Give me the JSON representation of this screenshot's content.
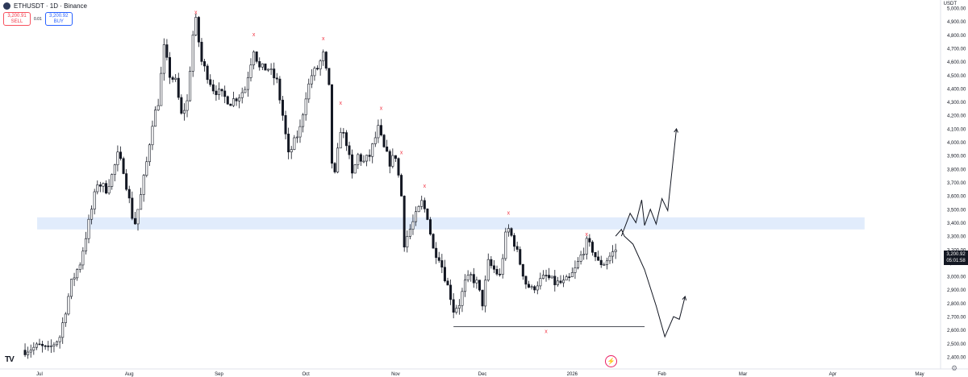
{
  "header": {
    "title": "ETHUSDT · 1D · Binance",
    "sell": {
      "price": "3,200.91",
      "label": "SELL"
    },
    "buy": {
      "price": "3,200.92",
      "label": "BUY"
    },
    "spread": "0.01",
    "currency": "USDT"
  },
  "last_price": {
    "value": "3,200.92",
    "countdown": "05:01:58"
  },
  "icons": {
    "logo": "tradingview-logo-icon",
    "bolt": "lightning-icon",
    "settings": "gear-icon"
  },
  "colors": {
    "up": "#ffffff",
    "down": "#131722",
    "marker": "#f23645",
    "zone": "#dce9fb",
    "projection": "#131722"
  },
  "chart_data": {
    "type": "candlestick",
    "grid": false,
    "ylim": [
      2350,
      5050
    ],
    "y_ticks": [
      2400,
      2500,
      2600,
      2700,
      2800,
      2900,
      3000,
      3100,
      3200,
      3300,
      3400,
      3500,
      3600,
      3700,
      3800,
      3900,
      4000,
      4100,
      4200,
      4300,
      4400,
      4500,
      4600,
      4700,
      4800,
      4900,
      5000
    ],
    "y_tick_labels": [
      "2,400.00",
      "2,500.00",
      "2,600.00",
      "2,700.00",
      "2,800.00",
      "2,900.00",
      "3,000.00",
      "3,100.00",
      "3,200.00",
      "3,300.00",
      "3,400.00",
      "3,500.00",
      "3,600.00",
      "3,700.00",
      "3,800.00",
      "3,900.00",
      "4,000.00",
      "4,100.00",
      "4,200.00",
      "4,300.00",
      "4,400.00",
      "4,500.00",
      "4,600.00",
      "4,700.00",
      "4,800.00",
      "4,900.00",
      "5,000.00"
    ],
    "x_ticks": [
      {
        "label": "Jul",
        "date": "2025-07-01"
      },
      {
        "label": "Aug",
        "date": "2025-08-01"
      },
      {
        "label": "Sep",
        "date": "2025-09-01"
      },
      {
        "label": "Oct",
        "date": "2025-10-01"
      },
      {
        "label": "Nov",
        "date": "2025-11-01"
      },
      {
        "label": "Dec",
        "date": "2025-12-01"
      },
      {
        "label": "2026",
        "date": "2026-01-01"
      },
      {
        "label": "Feb",
        "date": "2026-02-01"
      },
      {
        "label": "Mar",
        "date": "2026-03-01"
      },
      {
        "label": "Apr",
        "date": "2026-04-01"
      },
      {
        "label": "May",
        "date": "2026-05-01"
      }
    ],
    "x_start": "2025-06-26",
    "x_end": "2026-05-11",
    "price_path": [
      [
        "2025-06-26",
        2450
      ],
      [
        "2025-07-01",
        2480
      ],
      [
        "2025-07-04",
        2450
      ],
      [
        "2025-07-08",
        2550
      ],
      [
        "2025-07-10",
        2750
      ],
      [
        "2025-07-12",
        2950
      ],
      [
        "2025-07-15",
        3100
      ],
      [
        "2025-07-17",
        3300
      ],
      [
        "2025-07-19",
        3500
      ],
      [
        "2025-07-21",
        3700
      ],
      [
        "2025-07-24",
        3650
      ],
      [
        "2025-07-26",
        3750
      ],
      [
        "2025-07-28",
        3900
      ],
      [
        "2025-07-30",
        3800
      ],
      [
        "2025-08-02",
        3450
      ],
      [
        "2025-08-03",
        3400
      ],
      [
        "2025-08-05",
        3600
      ],
      [
        "2025-08-07",
        3850
      ],
      [
        "2025-08-09",
        4150
      ],
      [
        "2025-08-11",
        4300
      ],
      [
        "2025-08-13",
        4700
      ],
      [
        "2025-08-15",
        4500
      ],
      [
        "2025-08-17",
        4450
      ],
      [
        "2025-08-19",
        4200
      ],
      [
        "2025-08-21",
        4300
      ],
      [
        "2025-08-23",
        4800
      ],
      [
        "2025-08-24",
        4900
      ],
      [
        "2025-08-26",
        4600
      ],
      [
        "2025-08-28",
        4500
      ],
      [
        "2025-08-30",
        4400
      ],
      [
        "2025-09-02",
        4350
      ],
      [
        "2025-09-05",
        4300
      ],
      [
        "2025-09-08",
        4350
      ],
      [
        "2025-09-10",
        4400
      ],
      [
        "2025-09-12",
        4600
      ],
      [
        "2025-09-13",
        4700
      ],
      [
        "2025-09-15",
        4550
      ],
      [
        "2025-09-18",
        4550
      ],
      [
        "2025-09-21",
        4450
      ],
      [
        "2025-09-23",
        4200
      ],
      [
        "2025-09-25",
        3900
      ],
      [
        "2025-09-27",
        4000
      ],
      [
        "2025-09-29",
        4100
      ],
      [
        "2025-10-01",
        4350
      ],
      [
        "2025-10-03",
        4500
      ],
      [
        "2025-10-05",
        4550
      ],
      [
        "2025-10-07",
        4650
      ],
      [
        "2025-10-09",
        4400
      ],
      [
        "2025-10-10",
        3850
      ],
      [
        "2025-10-11",
        3750
      ],
      [
        "2025-10-13",
        4100
      ],
      [
        "2025-10-15",
        4000
      ],
      [
        "2025-10-17",
        3750
      ],
      [
        "2025-10-19",
        3900
      ],
      [
        "2025-10-21",
        3850
      ],
      [
        "2025-10-23",
        3900
      ],
      [
        "2025-10-26",
        4100
      ],
      [
        "2025-10-28",
        3950
      ],
      [
        "2025-10-30",
        3850
      ],
      [
        "2025-11-01",
        3900
      ],
      [
        "2025-11-03",
        3600
      ],
      [
        "2025-11-04",
        3250
      ],
      [
        "2025-11-05",
        3300
      ],
      [
        "2025-11-07",
        3400
      ],
      [
        "2025-11-10",
        3550
      ],
      [
        "2025-11-12",
        3450
      ],
      [
        "2025-11-14",
        3200
      ],
      [
        "2025-11-16",
        3150
      ],
      [
        "2025-11-18",
        3000
      ],
      [
        "2025-11-20",
        2850
      ],
      [
        "2025-11-21",
        2750
      ],
      [
        "2025-11-23",
        2800
      ],
      [
        "2025-11-25",
        2950
      ],
      [
        "2025-11-27",
        3000
      ],
      [
        "2025-11-29",
        2950
      ],
      [
        "2025-12-01",
        2800
      ],
      [
        "2025-12-03",
        3100
      ],
      [
        "2025-12-05",
        3050
      ],
      [
        "2025-12-07",
        3000
      ],
      [
        "2025-12-09",
        3300
      ],
      [
        "2025-12-10",
        3350
      ],
      [
        "2025-12-12",
        3250
      ],
      [
        "2025-12-14",
        3100
      ],
      [
        "2025-12-16",
        2950
      ],
      [
        "2025-12-18",
        2900
      ],
      [
        "2025-12-20",
        2950
      ],
      [
        "2025-12-23",
        3000
      ],
      [
        "2025-12-26",
        2950
      ],
      [
        "2025-12-29",
        2950
      ],
      [
        "2025-12-31",
        2980
      ],
      [
        "2026-01-02",
        3050
      ],
      [
        "2026-01-04",
        3150
      ],
      [
        "2026-01-06",
        3250
      ],
      [
        "2026-01-08",
        3200
      ],
      [
        "2026-01-10",
        3100
      ],
      [
        "2026-01-12",
        3100
      ],
      [
        "2026-01-14",
        3150
      ],
      [
        "2026-01-16",
        3200
      ]
    ],
    "marked_highs": [
      {
        "date": "2025-08-24",
        "price": 4955
      },
      {
        "date": "2025-09-13",
        "price": 4790
      },
      {
        "date": "2025-10-07",
        "price": 4760
      },
      {
        "date": "2025-10-13",
        "price": 4280
      },
      {
        "date": "2025-10-27",
        "price": 4240
      },
      {
        "date": "2025-11-03",
        "price": 3910
      },
      {
        "date": "2025-11-11",
        "price": 3660
      },
      {
        "date": "2025-12-10",
        "price": 3460
      },
      {
        "date": "2026-01-06",
        "price": 3300
      }
    ],
    "support_line": {
      "from": "2025-11-21",
      "to": "2026-01-26",
      "price": 2625,
      "marker_date": "2025-12-23"
    },
    "supply_zone": {
      "from": "2025-06-26",
      "to": "2026-04-12",
      "low": 3350,
      "high": 3440
    },
    "scenarios": [
      {
        "name": "",
        "points": [
          [
            "2026-01-18",
            3300
          ],
          [
            "2026-01-21",
            3470
          ],
          [
            "2026-01-23",
            3400
          ],
          [
            "2026-01-25",
            3570
          ],
          [
            "2026-01-26",
            3380
          ],
          [
            "2026-01-28",
            3500
          ],
          [
            "2026-01-30",
            3390
          ],
          [
            "2026-02-01",
            3580
          ],
          [
            "2026-02-03",
            3490
          ],
          [
            "2026-02-06",
            4100
          ]
        ]
      },
      {
        "name": "",
        "points": [
          [
            "2026-01-16",
            3300
          ],
          [
            "2026-01-18",
            3350
          ],
          [
            "2026-01-19",
            3300
          ],
          [
            "2026-01-22",
            3240
          ],
          [
            "2026-01-26",
            3050
          ],
          [
            "2026-01-30",
            2780
          ],
          [
            "2026-02-02",
            2550
          ],
          [
            "2026-02-05",
            2700
          ],
          [
            "2026-02-07",
            2680
          ],
          [
            "2026-02-09",
            2850
          ]
        ]
      }
    ]
  }
}
